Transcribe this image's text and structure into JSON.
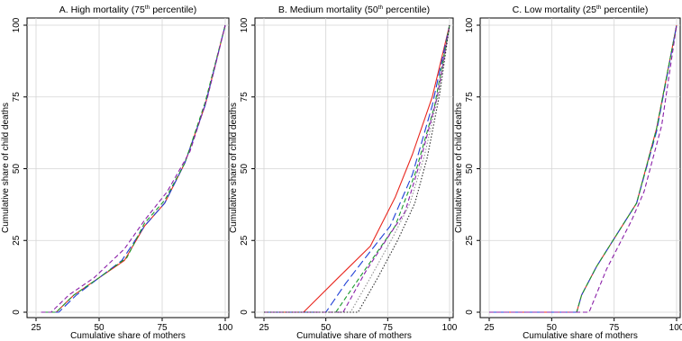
{
  "figure": {
    "panels": [
      {
        "title": "A. High mortality (75",
        "title_sup": "th",
        "title_end": " percentile)",
        "xlabel": "Cumulative share of mothers",
        "ylabel": "Cumulative share of child deaths"
      },
      {
        "title": "B. Medium mortality (50",
        "title_sup": "th",
        "title_end": " percentile)",
        "xlabel": "Cumulative share of mothers",
        "ylabel": "Cumulative share of child deaths"
      },
      {
        "title": "C. Low mortality (25",
        "title_sup": "th",
        "title_end": " percentile)",
        "xlabel": "Cumulative share of mothers",
        "ylabel": "Cumulative share of child deaths"
      }
    ]
  },
  "chart_data": [
    {
      "type": "line",
      "title": "A. High mortality (75th percentile)",
      "xlabel": "Cumulative share of mothers",
      "ylabel": "Cumulative share of child deaths",
      "xlim": [
        25,
        100
      ],
      "ylim": [
        0,
        100
      ],
      "xticks": [
        25,
        50,
        75,
        100
      ],
      "yticks": [
        0,
        25,
        50,
        75,
        100
      ],
      "grid": true,
      "series": [
        {
          "color": "#e8261e",
          "dash": "solid",
          "points": [
            [
              28,
              0
            ],
            [
              33,
              0
            ],
            [
              40,
              6
            ],
            [
              50,
              12
            ],
            [
              60,
              18
            ],
            [
              68,
              30
            ],
            [
              76,
              38
            ],
            [
              84,
              52
            ],
            [
              92,
              72
            ],
            [
              100,
              100
            ]
          ]
        },
        {
          "color": "#1f3fd6",
          "dash": "long-dash",
          "points": [
            [
              28,
              0
            ],
            [
              34,
              0
            ],
            [
              41,
              6
            ],
            [
              50,
              12
            ],
            [
              59,
              18
            ],
            [
              68,
              30
            ],
            [
              76,
              38
            ],
            [
              84,
              52
            ],
            [
              92,
              72
            ],
            [
              100,
              100
            ]
          ]
        },
        {
          "color": "#1a9a2a",
          "dash": "dash",
          "points": [
            [
              28,
              0
            ],
            [
              33,
              0
            ],
            [
              40,
              6
            ],
            [
              50,
              12
            ],
            [
              61,
              19
            ],
            [
              68,
              31
            ],
            [
              76,
              39
            ],
            [
              84,
              52
            ],
            [
              92,
              73
            ],
            [
              100,
              100
            ]
          ]
        },
        {
          "color": "#8a1fa8",
          "dash": "dash",
          "points": [
            [
              27,
              0
            ],
            [
              31,
              0
            ],
            [
              38,
              6
            ],
            [
              48,
              12
            ],
            [
              60,
              22
            ],
            [
              68,
              32
            ],
            [
              77,
              42
            ],
            [
              86,
              56
            ],
            [
              93,
              75
            ],
            [
              100,
              100
            ]
          ]
        }
      ]
    },
    {
      "type": "line",
      "title": "B. Medium mortality (50th percentile)",
      "xlabel": "Cumulative share of mothers",
      "ylabel": "Cumulative share of child deaths",
      "xlim": [
        25,
        100
      ],
      "ylim": [
        0,
        100
      ],
      "xticks": [
        25,
        50,
        75,
        100
      ],
      "yticks": [
        0,
        25,
        50,
        75,
        100
      ],
      "grid": true,
      "series": [
        {
          "color": "#e8261e",
          "dash": "solid",
          "points": [
            [
              25,
              0
            ],
            [
              41,
              0
            ],
            [
              55,
              12
            ],
            [
              68,
              23
            ],
            [
              78,
              40
            ],
            [
              85,
              55
            ],
            [
              93,
              75
            ],
            [
              100,
              100
            ]
          ]
        },
        {
          "color": "#1f3fd6",
          "dash": "long-dash",
          "points": [
            [
              25,
              0
            ],
            [
              50,
              0
            ],
            [
              58,
              10
            ],
            [
              66,
              19
            ],
            [
              76,
              30
            ],
            [
              85,
              48
            ],
            [
              93,
              72
            ],
            [
              100,
              100
            ]
          ]
        },
        {
          "color": "#1a9a2a",
          "dash": "dash",
          "points": [
            [
              25,
              0
            ],
            [
              54,
              0
            ],
            [
              62,
              10
            ],
            [
              70,
              20
            ],
            [
              78,
              30
            ],
            [
              86,
              48
            ],
            [
              94,
              72
            ],
            [
              100,
              100
            ]
          ]
        },
        {
          "color": "#8a1fa8",
          "dash": "dash",
          "points": [
            [
              25,
              0
            ],
            [
              57,
              0
            ],
            [
              66,
              14
            ],
            [
              75,
              26
            ],
            [
              82,
              35
            ],
            [
              88,
              52
            ],
            [
              95,
              75
            ],
            [
              100,
              100
            ]
          ]
        },
        {
          "color": "#8a8a8a",
          "dash": "dot",
          "points": [
            [
              25,
              0
            ],
            [
              60,
              0
            ],
            [
              68,
              12
            ],
            [
              77,
              26
            ],
            [
              84,
              38
            ],
            [
              90,
              55
            ],
            [
              96,
              78
            ],
            [
              100,
              100
            ]
          ]
        },
        {
          "color": "#222222",
          "dash": "dot",
          "points": [
            [
              25,
              0
            ],
            [
              63,
              0
            ],
            [
              71,
              12
            ],
            [
              79,
              25
            ],
            [
              86,
              38
            ],
            [
              91,
              54
            ],
            [
              96,
              76
            ],
            [
              100,
              100
            ]
          ]
        }
      ]
    },
    {
      "type": "line",
      "title": "C. Low mortality (25th percentile)",
      "xlabel": "Cumulative share of mothers",
      "ylabel": "Cumulative share of child deaths",
      "xlim": [
        25,
        100
      ],
      "ylim": [
        0,
        100
      ],
      "xticks": [
        25,
        50,
        75,
        100
      ],
      "yticks": [
        0,
        25,
        50,
        75,
        100
      ],
      "grid": true,
      "series": [
        {
          "color": "#e8261e",
          "dash": "solid",
          "points": [
            [
              25,
              0
            ],
            [
              60,
              0
            ],
            [
              62,
              6
            ],
            [
              68,
              16
            ],
            [
              76,
              27
            ],
            [
              84,
              38
            ],
            [
              92,
              64
            ],
            [
              100,
              100
            ]
          ]
        },
        {
          "color": "#1f3fd6",
          "dash": "long-dash",
          "points": [
            [
              25,
              0
            ],
            [
              60,
              0
            ],
            [
              62,
              6
            ],
            [
              68,
              16
            ],
            [
              76,
              27
            ],
            [
              84,
              38
            ],
            [
              92,
              63
            ],
            [
              100,
              100
            ]
          ]
        },
        {
          "color": "#1a9a2a",
          "dash": "dash",
          "points": [
            [
              25,
              0
            ],
            [
              60,
              0
            ],
            [
              62,
              6
            ],
            [
              68,
              16
            ],
            [
              76,
              27
            ],
            [
              84,
              38
            ],
            [
              92,
              64
            ],
            [
              100,
              100
            ]
          ]
        },
        {
          "color": "#8a1fa8",
          "dash": "dash",
          "points": [
            [
              25,
              0
            ],
            [
              65,
              0
            ],
            [
              72,
              15
            ],
            [
              82,
              32
            ],
            [
              87,
              42
            ],
            [
              94,
              65
            ],
            [
              100,
              100
            ]
          ]
        }
      ]
    }
  ]
}
